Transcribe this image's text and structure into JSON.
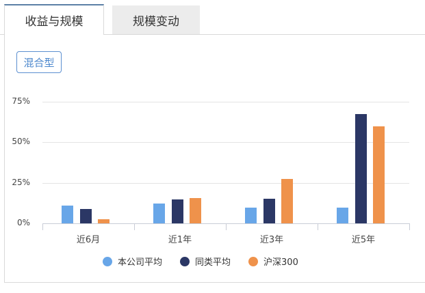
{
  "tabs": [
    {
      "label": "收益与规模",
      "active": true
    },
    {
      "label": "规模变动",
      "active": false
    }
  ],
  "type_button": {
    "label": "混合型"
  },
  "colors": {
    "company": "#68a6e8",
    "peer": "#2b3765",
    "index": "#ef924b"
  },
  "chart_data": {
    "type": "bar",
    "title": "",
    "xlabel": "",
    "ylabel": "",
    "categories": [
      "近6月",
      "近1年",
      "近3年",
      "近5年"
    ],
    "series": [
      {
        "name": "本公司平均",
        "color": "#68a6e8",
        "values": [
          11.0,
          12.2,
          9.7,
          9.7
        ]
      },
      {
        "name": "同类平均",
        "color": "#2b3765",
        "values": [
          8.9,
          14.8,
          15.2,
          67.4
        ]
      },
      {
        "name": "沪深300",
        "color": "#ef924b",
        "values": [
          2.5,
          15.6,
          27.4,
          59.8
        ]
      }
    ],
    "yticks": [
      "0%",
      "25%",
      "50%",
      "75%"
    ],
    "ylim": [
      0,
      75
    ],
    "grid": true,
    "legend_position": "bottom"
  }
}
